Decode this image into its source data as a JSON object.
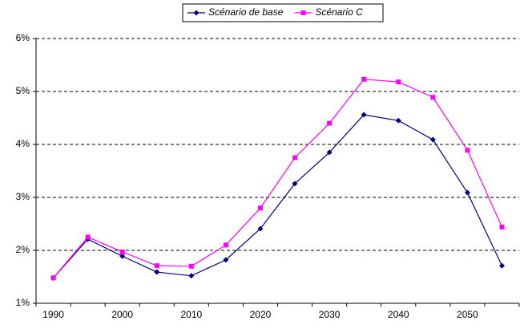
{
  "chart_data": {
    "type": "line",
    "categories": [
      "1990",
      null,
      "2000",
      null,
      "2010",
      null,
      "2020",
      null,
      "2030",
      null,
      "2040",
      null,
      "2050",
      null
    ],
    "series": [
      {
        "name": "Scénario de base",
        "color": "#000080",
        "marker": "diamond",
        "values": [
          1.48,
          2.21,
          1.89,
          1.59,
          1.52,
          1.82,
          2.41,
          3.26,
          3.85,
          4.56,
          4.45,
          4.09,
          3.09,
          1.71
        ]
      },
      {
        "name": "Scénario C",
        "color": "#ff00ff",
        "marker": "square",
        "values": [
          1.48,
          2.25,
          1.97,
          1.71,
          1.7,
          2.1,
          2.8,
          3.75,
          4.4,
          5.23,
          5.18,
          4.89,
          3.89,
          2.44
        ]
      }
    ],
    "ylim": [
      1,
      6
    ],
    "yticks": [
      {
        "value": 1,
        "label": "1%"
      },
      {
        "value": 2,
        "label": "2%"
      },
      {
        "value": 3,
        "label": "3%"
      },
      {
        "value": 4,
        "label": "4%"
      },
      {
        "value": 5,
        "label": "5%"
      },
      {
        "value": 6,
        "label": "6%"
      }
    ],
    "grid": true,
    "legend": "top"
  }
}
